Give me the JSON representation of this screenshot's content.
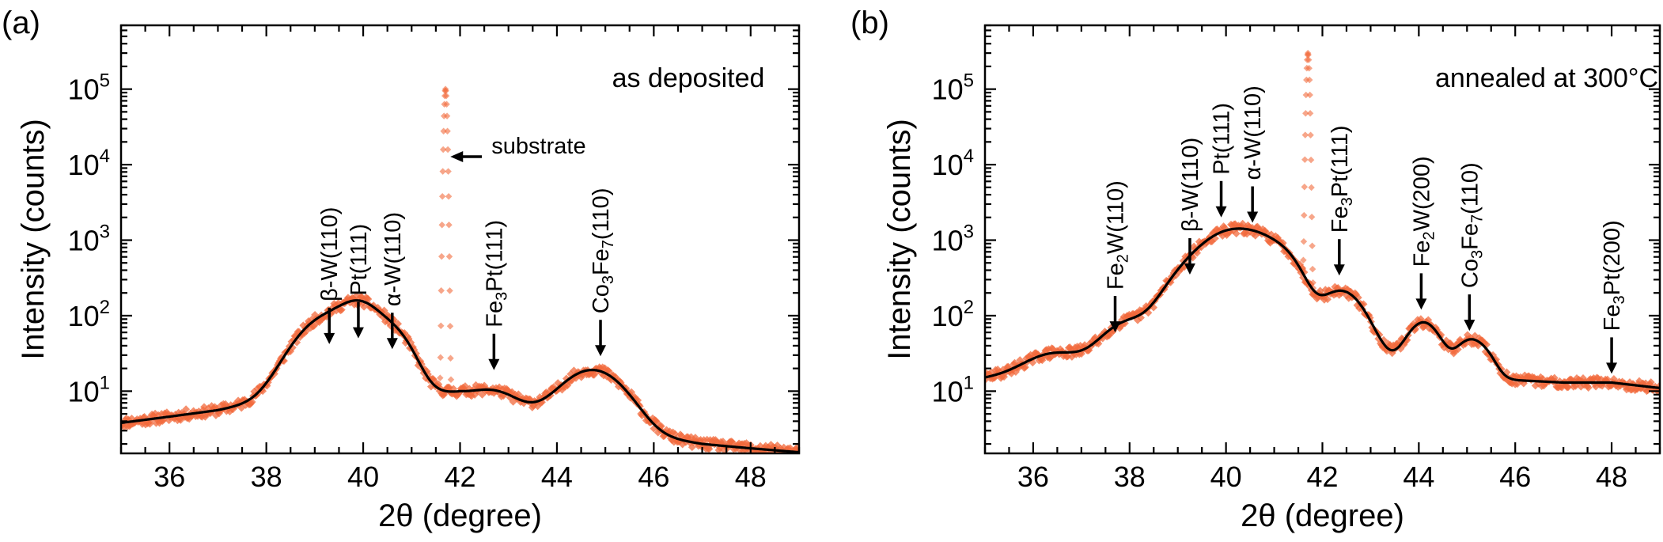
{
  "chart_data": [
    {
      "type": "scatter",
      "panel": "(a)",
      "condition": "as deposited",
      "xlabel": "2θ (degree)",
      "ylabel": "Intensity (counts)",
      "xlim": [
        35,
        49
      ],
      "ylim": [
        1.5,
        700000
      ],
      "yscale": "log",
      "xticks": [
        36,
        38,
        40,
        42,
        44,
        46,
        48
      ],
      "xtick_labels": [
        "36",
        "38",
        "40",
        "42",
        "44",
        "46",
        "48"
      ],
      "yticks": [
        10,
        100,
        1000,
        10000,
        100000
      ],
      "ytick_base": "10",
      "ytick_exponents": [
        "1",
        "2",
        "3",
        "4",
        "5"
      ],
      "marker_color": "#f26a3c",
      "fit_color": "#000000",
      "fit": {
        "background": [
          [
            35,
            3.8
          ],
          [
            36,
            4.6
          ],
          [
            37,
            5.6
          ],
          [
            38,
            7.5
          ],
          [
            39,
            9.0
          ],
          [
            40,
            9.8
          ],
          [
            41,
            10.0
          ],
          [
            42,
            9.4
          ],
          [
            43,
            6.8
          ],
          [
            44,
            4.6
          ],
          [
            45,
            3.3
          ],
          [
            46,
            2.5
          ],
          [
            47,
            2.0
          ],
          [
            48,
            1.75
          ],
          [
            49,
            1.55
          ]
        ],
        "peaks": [
          {
            "center": 39.3,
            "height": 88,
            "width": 0.55
          },
          {
            "center": 39.95,
            "height": 95,
            "width": 0.35
          },
          {
            "center": 40.6,
            "height": 48,
            "width": 0.35
          },
          {
            "center": 42.7,
            "height": 2.8,
            "width": 0.4
          },
          {
            "center": 44.75,
            "height": 15.5,
            "width": 0.55
          }
        ]
      },
      "substrate_peak": {
        "center": 41.7,
        "height": 100000,
        "width": 0.025
      },
      "annotations": [
        {
          "parts": [
            [
              "β-W(110)",
              false
            ]
          ],
          "x": 39.3,
          "y": 42
        },
        {
          "parts": [
            [
              "Pt(111)",
              false
            ]
          ],
          "x": 39.9,
          "y": 50
        },
        {
          "parts": [
            [
              "α-W(110)",
              false
            ]
          ],
          "x": 40.6,
          "y": 36
        },
        {
          "parts": [
            [
              "Fe",
              false
            ],
            [
              "3",
              true
            ],
            [
              "Pt(111)",
              false
            ]
          ],
          "x": 42.7,
          "y": 19
        },
        {
          "parts": [
            [
              "Co",
              false
            ],
            [
              "3",
              true
            ],
            [
              "Fe",
              false
            ],
            [
              "7",
              true
            ],
            [
              "(110)",
              false
            ]
          ],
          "x": 44.9,
          "y": 29
        }
      ],
      "substrate_label": "substrate"
    },
    {
      "type": "scatter",
      "panel": "(b)",
      "condition": "annealed at 300°C",
      "xlabel": "2θ (degree)",
      "ylabel": "Intensity (counts)",
      "xlim": [
        35,
        49
      ],
      "ylim": [
        1.5,
        700000
      ],
      "yscale": "log",
      "xticks": [
        36,
        38,
        40,
        42,
        44,
        46,
        48
      ],
      "xtick_labels": [
        "36",
        "38",
        "40",
        "42",
        "44",
        "46",
        "48"
      ],
      "yticks": [
        10,
        100,
        1000,
        10000,
        100000
      ],
      "ytick_base": "10",
      "ytick_exponents": [
        "1",
        "2",
        "3",
        "4",
        "5"
      ],
      "marker_color": "#f26a3c",
      "fit_color": "#000000",
      "fit": {
        "background": [
          [
            35,
            15
          ],
          [
            36,
            19
          ],
          [
            37,
            24
          ],
          [
            38,
            30
          ],
          [
            39,
            38
          ],
          [
            40,
            45
          ],
          [
            41,
            40
          ],
          [
            42,
            34
          ],
          [
            43,
            26
          ],
          [
            44,
            20
          ],
          [
            45,
            16
          ],
          [
            46,
            14
          ],
          [
            47,
            13
          ],
          [
            48,
            13
          ],
          [
            49,
            11
          ]
        ],
        "peaks": [
          {
            "center": 36.4,
            "height": 11,
            "width": 0.5
          },
          {
            "center": 37.95,
            "height": 50,
            "width": 0.45
          },
          {
            "center": 39.35,
            "height": 380,
            "width": 0.5
          },
          {
            "center": 40.0,
            "height": 780,
            "width": 0.45
          },
          {
            "center": 40.7,
            "height": 950,
            "width": 0.5
          },
          {
            "center": 41.3,
            "height": 180,
            "width": 0.3
          },
          {
            "center": 42.4,
            "height": 180,
            "width": 0.4
          },
          {
            "center": 44.1,
            "height": 62,
            "width": 0.3
          },
          {
            "center": 45.05,
            "height": 30,
            "width": 0.25
          },
          {
            "center": 45.4,
            "height": 10,
            "width": 0.2
          }
        ]
      },
      "substrate_peak": {
        "center": 41.7,
        "height": 300000,
        "width": 0.025
      },
      "annotations": [
        {
          "parts": [
            [
              "Fe",
              false
            ],
            [
              "2",
              true
            ],
            [
              "W(110)",
              false
            ]
          ],
          "x": 37.7,
          "y": 60
        },
        {
          "parts": [
            [
              "β-W(110)",
              false
            ]
          ],
          "x": 39.25,
          "y": 350
        },
        {
          "parts": [
            [
              "Pt(111)",
              false
            ]
          ],
          "x": 39.9,
          "y": 2000
        },
        {
          "parts": [
            [
              "α-W(110)",
              false
            ]
          ],
          "x": 40.55,
          "y": 1700
        },
        {
          "parts": [
            [
              "Fe",
              false
            ],
            [
              "3",
              true
            ],
            [
              "Pt(111)",
              false
            ]
          ],
          "x": 42.35,
          "y": 340
        },
        {
          "parts": [
            [
              "Fe",
              false
            ],
            [
              "2",
              true
            ],
            [
              "W(200)",
              false
            ]
          ],
          "x": 44.05,
          "y": 120
        },
        {
          "parts": [
            [
              "Co",
              false
            ],
            [
              "3",
              true
            ],
            [
              "Fe",
              false
            ],
            [
              "7",
              true
            ],
            [
              "(110)",
              false
            ]
          ],
          "x": 45.05,
          "y": 63
        },
        {
          "parts": [
            [
              "Fe",
              false
            ],
            [
              "3",
              true
            ],
            [
              "Pt(200)",
              false
            ]
          ],
          "x": 48.0,
          "y": 17
        }
      ]
    }
  ]
}
